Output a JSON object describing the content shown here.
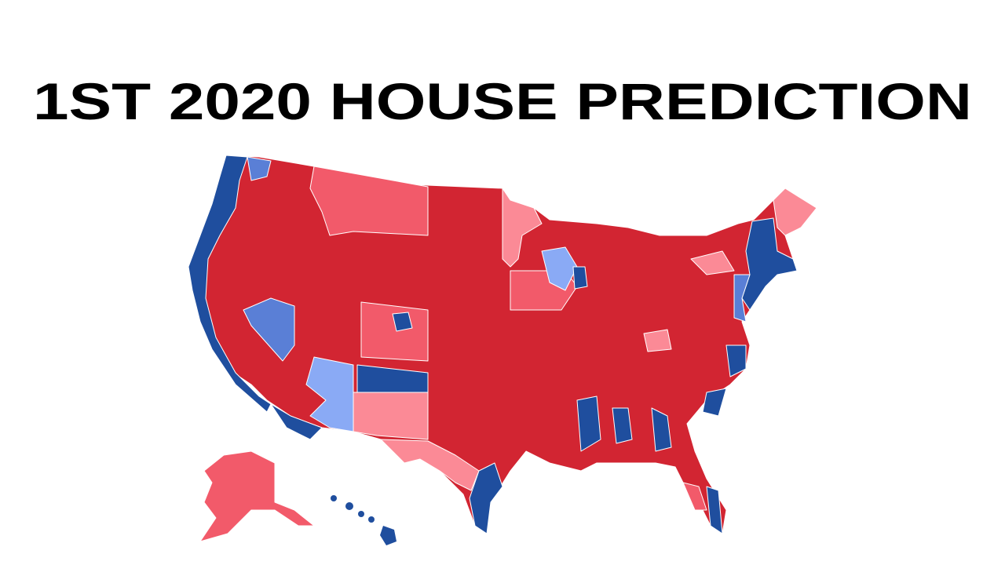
{
  "header": {
    "title": "1ST 2020 HOUSE PREDICTION"
  }
}
